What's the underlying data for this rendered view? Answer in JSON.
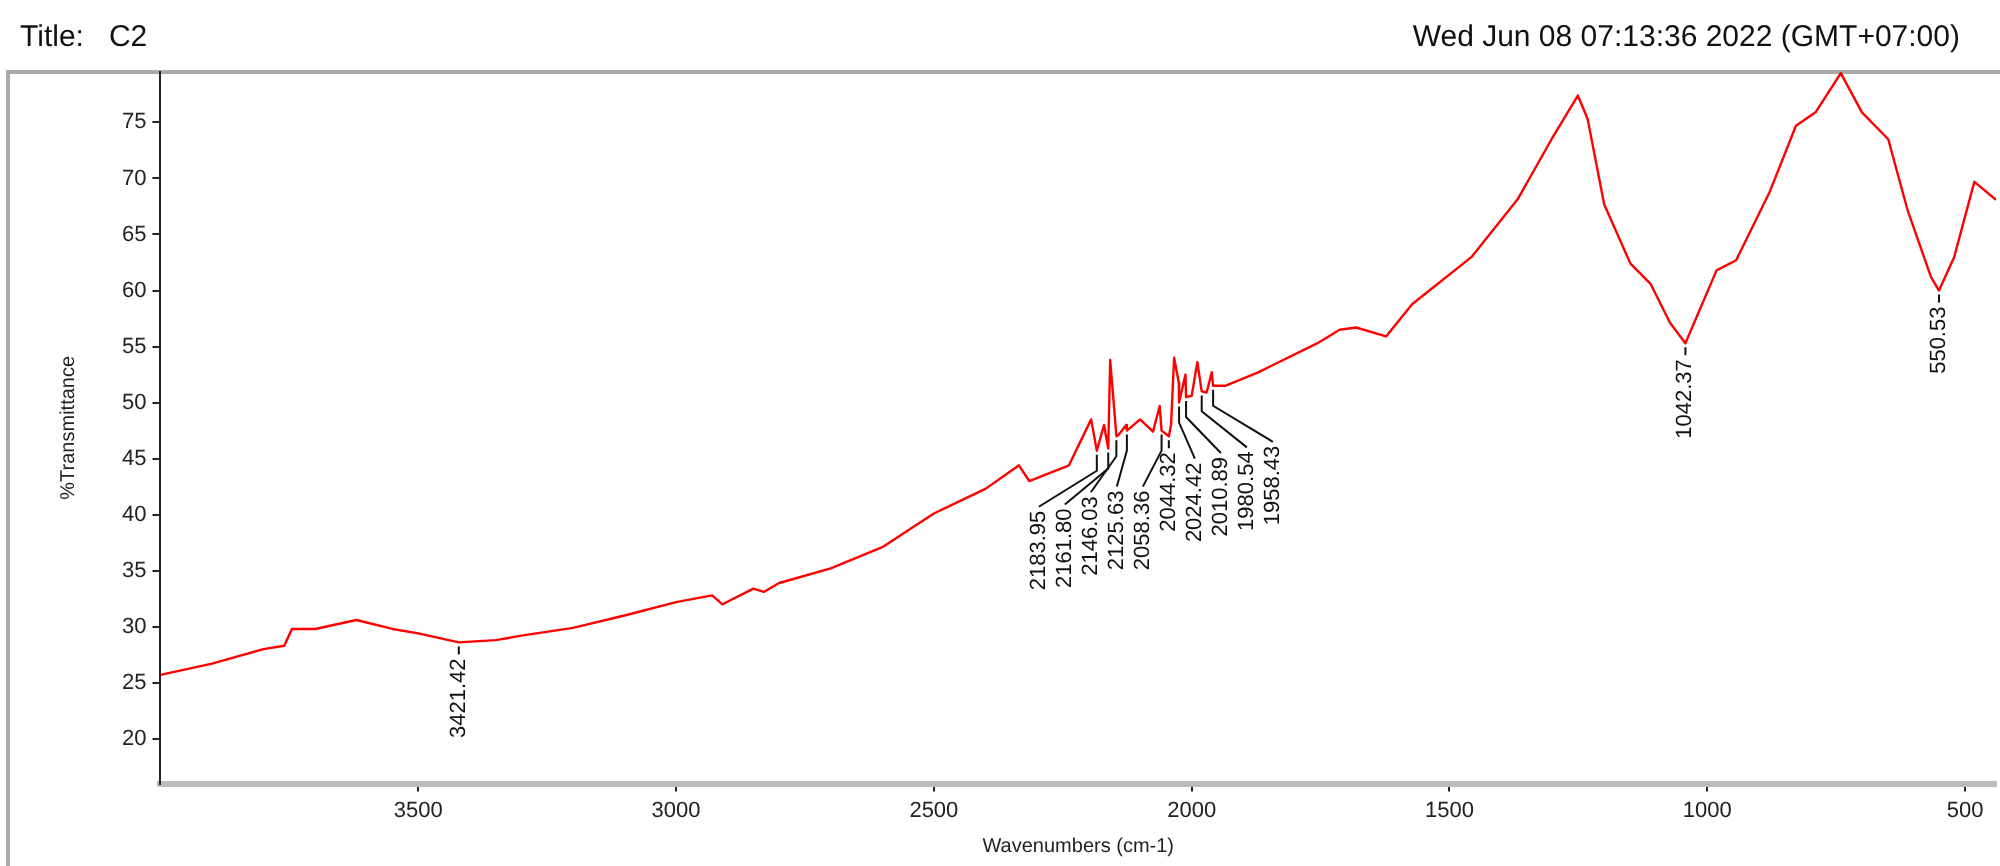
{
  "chart_data": {
    "type": "line",
    "title": "Title:   C2",
    "subtitle": "Wed Jun 08 07:13:36 2022 (GMT+07:00)",
    "xlabel": "Wavenumbers (cm-1)",
    "ylabel": "%Transmittance",
    "x": [
      4000,
      3900,
      3800,
      3760,
      3745,
      3700,
      3620,
      3550,
      3500,
      3421.42,
      3350,
      3300,
      3200,
      3100,
      3000,
      2930,
      2910,
      2850,
      2830,
      2800,
      2700,
      2600,
      2500,
      2450,
      2400,
      2335,
      2315,
      2238,
      2195,
      2183.95,
      2170,
      2161.8,
      2158,
      2146.03,
      2142,
      2127,
      2125.63,
      2100,
      2075,
      2062,
      2058.36,
      2044.32,
      2040,
      2034,
      2025,
      2024.42,
      2012,
      2010.89,
      2000,
      1989,
      1980.54,
      1971,
      1961,
      1958.43,
      1935,
      1871,
      1756,
      1713,
      1681,
      1623,
      1572,
      1457,
      1367,
      1302,
      1251,
      1232,
      1200,
      1149,
      1110,
      1072,
      1042.37,
      982,
      944,
      879,
      828,
      790,
      741,
      700,
      649,
      611,
      566,
      550.53,
      521,
      482,
      440
    ],
    "series": [
      {
        "color": "#ff0000",
        "values": [
          25.7,
          26.7,
          28.0,
          28.3,
          29.8,
          29.8,
          30.6,
          29.8,
          29.4,
          28.6,
          28.8,
          29.2,
          29.9,
          31.0,
          32.2,
          32.8,
          32.0,
          33.4,
          33.1,
          33.9,
          35.2,
          37.1,
          40.1,
          41.2,
          42.3,
          44.4,
          43.0,
          44.4,
          48.5,
          45.7,
          48.0,
          45.9,
          53.8,
          47.0,
          47.1,
          48.0,
          47.5,
          48.5,
          47.4,
          49.7,
          47.5,
          47.0,
          48.0,
          54.0,
          51.8,
          50.0,
          52.5,
          50.5,
          50.6,
          53.6,
          51.0,
          50.9,
          52.7,
          51.5,
          51.5,
          52.7,
          55.3,
          56.5,
          56.7,
          55.9,
          58.8,
          63.0,
          68.2,
          73.5,
          77.4,
          75.3,
          67.7,
          62.4,
          60.6,
          57.1,
          55.3,
          61.8,
          62.7,
          68.8,
          74.7,
          75.9,
          79.4,
          75.9,
          73.5,
          67.1,
          61.2,
          60.0,
          63.0,
          69.7,
          68.1
        ]
      }
    ],
    "xlim": [
      4000,
      440
    ],
    "xticks": [
      3500,
      3000,
      2500,
      2000,
      1500,
      1000,
      500
    ],
    "ylim": [
      16,
      79.5
    ],
    "yticks": [
      20,
      25,
      30,
      35,
      40,
      45,
      50,
      55,
      60,
      65,
      70,
      75
    ],
    "grid": false,
    "legend": false,
    "marker": "none",
    "line_style": "solid",
    "annotations": [
      {
        "text": "3421.42",
        "x": 3421.42,
        "y": 28.6
      },
      {
        "text": "2183.95",
        "x": 2183.95,
        "y": 45.7
      },
      {
        "text": "2161.80",
        "x": 2161.8,
        "y": 45.9
      },
      {
        "text": "2146.03",
        "x": 2146.03,
        "y": 47.0
      },
      {
        "text": "2125.63",
        "x": 2125.63,
        "y": 47.5
      },
      {
        "text": "2058.36",
        "x": 2058.36,
        "y": 47.5
      },
      {
        "text": "2044.32",
        "x": 2044.32,
        "y": 47.0
      },
      {
        "text": "2024.42",
        "x": 2024.42,
        "y": 50.0
      },
      {
        "text": "2010.89",
        "x": 2010.89,
        "y": 50.5
      },
      {
        "text": "1980.54",
        "x": 1980.54,
        "y": 51.0
      },
      {
        "text": "1958.43",
        "x": 1958.43,
        "y": 51.5
      },
      {
        "text": "1042.37",
        "x": 1042.37,
        "y": 55.3
      },
      {
        "text": "550.53",
        "x": 550.53,
        "y": 60.0
      }
    ]
  }
}
